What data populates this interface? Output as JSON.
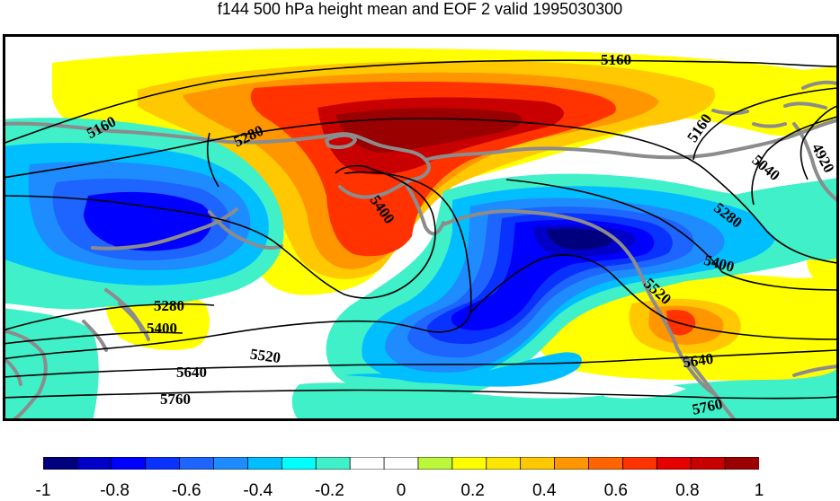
{
  "title": "f144 500 hPa height mean and EOF 2 valid 1995030300",
  "colorbar": {
    "colors": [
      "#00007f",
      "#0000c8",
      "#0000ff",
      "#0a32ff",
      "#1e64ff",
      "#1e8cff",
      "#00beff",
      "#00ffff",
      "#40f0c8",
      "#ffffff",
      "#ffffff",
      "#bbf73a",
      "#ffff00",
      "#ffe600",
      "#ffc800",
      "#ff9600",
      "#ff6400",
      "#ff3200",
      "#e60000",
      "#c80000",
      "#9b0000"
    ],
    "tick_labels": [
      "-1",
      "-0.8",
      "-0.6",
      "-0.4",
      "-0.2",
      "0",
      "0.2",
      "0.4",
      "0.6",
      "0.8",
      "1"
    ],
    "range": [
      -1,
      1
    ]
  },
  "contour_labels": [
    "5160",
    "5160",
    "5160",
    "5280",
    "5400",
    "5040",
    "4920",
    "5280",
    "5400",
    "5520",
    "5280",
    "5400",
    "5520",
    "5640",
    "5760",
    "5640",
    "5760"
  ]
}
